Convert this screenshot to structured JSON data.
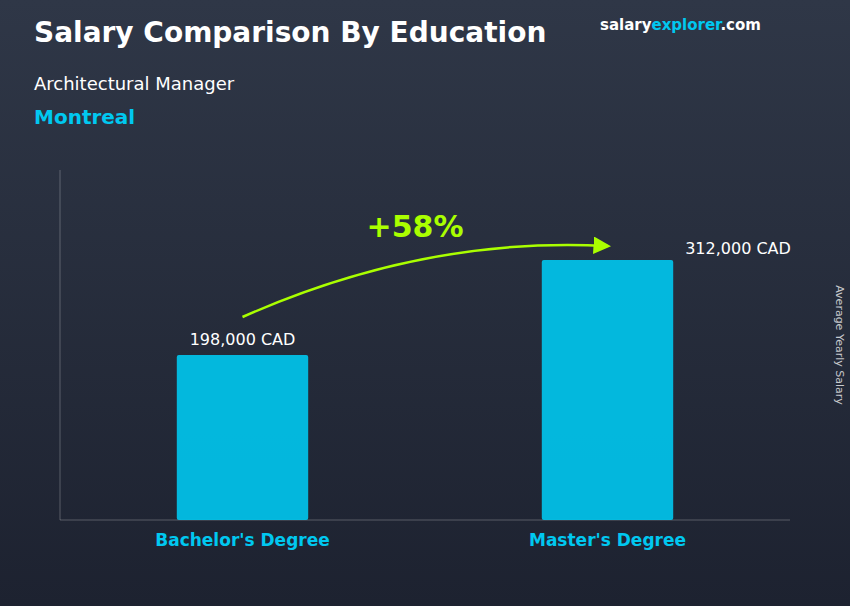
{
  "chart_data": {
    "type": "bar",
    "title": "Salary Comparison By Education",
    "subtitle": "Architectural Manager",
    "y_label": "Average Yearly Salary",
    "categories": [
      "Bachelor's Degree",
      "Master's Degree"
    ],
    "values": [
      198000,
      312000
    ],
    "value_labels": [
      "198,000 CAD",
      "312,000 CAD"
    ],
    "data_labels": true,
    "color": "#00c8f0",
    "ylim": [
      0,
      420000
    ],
    "tick_labels": "x",
    "grid": false,
    "annotations": [
      {
        "text": "Montreal",
        "color": "#00c8f0"
      },
      {
        "text": "+58%",
        "color": "#aaff00"
      },
      {
        "text": "salary",
        "color": "#ffffff"
      },
      {
        "text": "explorer",
        "color": "#00c8f0"
      },
      {
        "text": ".com",
        "color": "#ffffff"
      }
    ]
  }
}
